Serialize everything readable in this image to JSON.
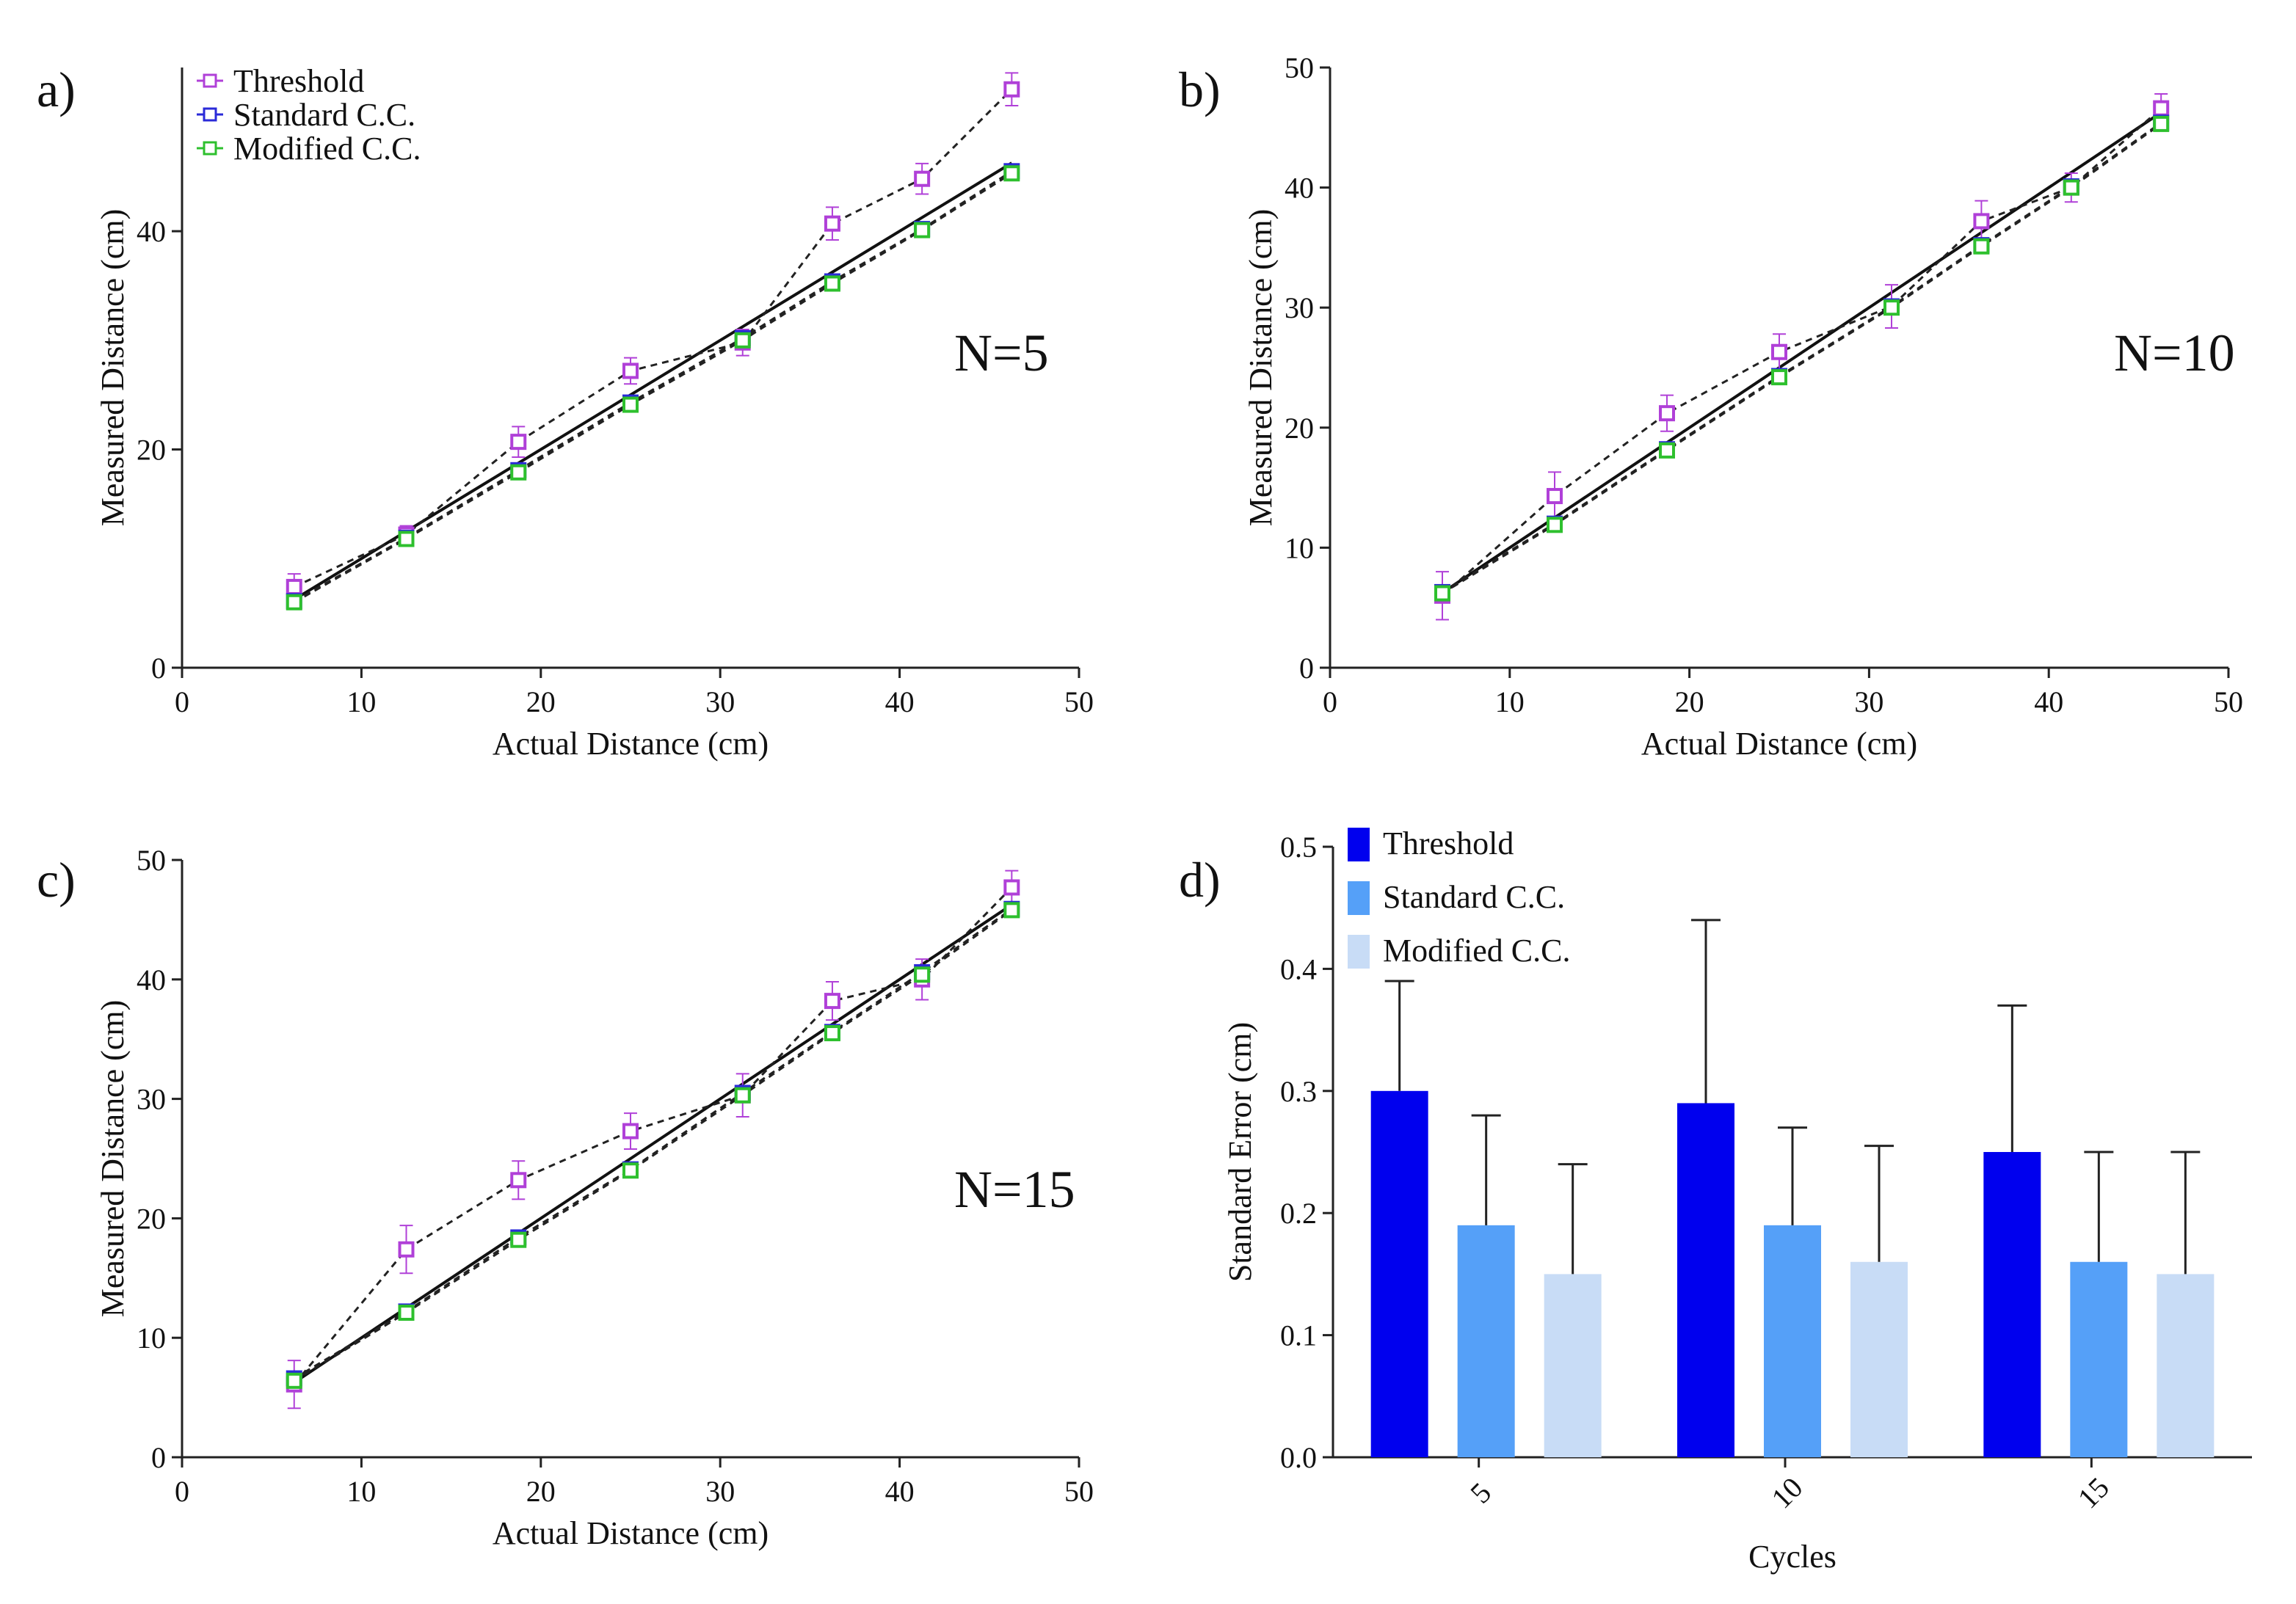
{
  "chart_data": [
    {
      "panel_label": "a)",
      "type": "line",
      "annotation": "N=5",
      "xlabel": "Actual Distance (cm)",
      "ylabel": "Measured Distance (cm)",
      "xlim": [
        0,
        50
      ],
      "ylim": [
        0,
        55
      ],
      "xticks": [
        "0",
        "10",
        "20",
        "30",
        "40",
        "50"
      ],
      "yticks": [
        "0",
        "20",
        "40"
      ],
      "legend_position": "top-left",
      "reference_line": {
        "name": "ideal",
        "x": [
          6.25,
          46.25
        ],
        "y": [
          6.25,
          46.25
        ]
      },
      "series": [
        {
          "name": "Threshold",
          "color": "#b040d8",
          "x": [
            6.25,
            12.5,
            18.75,
            25,
            31.25,
            36.25,
            41.25,
            46.25
          ],
          "y": [
            7.4,
            12.2,
            20.7,
            27.2,
            29.8,
            40.7,
            44.8,
            53
          ],
          "err": [
            1.2,
            0.8,
            1.4,
            1.2,
            1.2,
            1.5,
            1.4,
            1.5
          ]
        },
        {
          "name": "Standard  C.C.",
          "color": "#2a2ad8",
          "x": [
            6.25,
            12.5,
            18.75,
            25,
            31.25,
            36.25,
            41.25,
            46.25
          ],
          "y": [
            6.1,
            11.9,
            18.1,
            24.3,
            30.2,
            35.4,
            40.2,
            45.5
          ],
          "err": [
            0.5,
            0.5,
            0.5,
            0.5,
            0.5,
            0.5,
            0.5,
            0.5
          ]
        },
        {
          "name": "Modified C.C.",
          "color": "#2ec02e",
          "x": [
            6.25,
            12.5,
            18.75,
            25,
            31.25,
            36.25,
            41.25,
            46.25
          ],
          "y": [
            6.0,
            11.8,
            17.9,
            24.1,
            30.0,
            35.2,
            40.1,
            45.3
          ],
          "err": [
            0.4,
            0.4,
            0.4,
            0.4,
            0.4,
            0.4,
            0.4,
            0.4
          ]
        }
      ]
    },
    {
      "panel_label": "b)",
      "type": "line",
      "annotation": "N=10",
      "xlabel": "Actual Distance (cm)",
      "ylabel": "Measured Distance (cm)",
      "xlim": [
        0,
        50
      ],
      "ylim": [
        0,
        50
      ],
      "xticks": [
        "0",
        "10",
        "20",
        "30",
        "40",
        "50"
      ],
      "yticks": [
        "0",
        "10",
        "20",
        "30",
        "40",
        "50"
      ],
      "reference_line": {
        "name": "ideal",
        "x": [
          6.25,
          46.25
        ],
        "y": [
          6.25,
          46.25
        ]
      },
      "series": [
        {
          "name": "Threshold",
          "color": "#b040d8",
          "x": [
            6.25,
            12.5,
            18.75,
            25,
            31.25,
            36.25,
            41.25,
            46.25
          ],
          "y": [
            6.0,
            14.3,
            21.2,
            26.3,
            30.1,
            37.2,
            40.0,
            46.6
          ],
          "err": [
            2.0,
            2.0,
            1.5,
            1.5,
            1.8,
            1.7,
            1.2,
            1.2
          ]
        },
        {
          "name": "Standard  C.C.",
          "color": "#2a2ad8",
          "x": [
            6.25,
            12.5,
            18.75,
            25,
            31.25,
            36.25,
            41.25,
            46.25
          ],
          "y": [
            6.3,
            12.0,
            18.2,
            24.3,
            30.1,
            35.2,
            40.1,
            45.4
          ],
          "err": [
            0.5,
            0.5,
            0.5,
            0.5,
            0.5,
            0.5,
            0.5,
            0.5
          ]
        },
        {
          "name": "Modified C.C.",
          "color": "#2ec02e",
          "x": [
            6.25,
            12.5,
            18.75,
            25,
            31.25,
            36.25,
            41.25,
            46.25
          ],
          "y": [
            6.2,
            11.9,
            18.1,
            24.2,
            30.0,
            35.1,
            40.0,
            45.3
          ],
          "err": [
            0.4,
            0.4,
            0.4,
            0.4,
            0.4,
            0.4,
            0.4,
            0.4
          ]
        }
      ]
    },
    {
      "panel_label": "c)",
      "type": "line",
      "annotation": "N=15",
      "xlabel": "Actual Distance (cm)",
      "ylabel": "Measured Distance (cm)",
      "xlim": [
        0,
        50
      ],
      "ylim": [
        0,
        50
      ],
      "xticks": [
        "0",
        "10",
        "20",
        "30",
        "40",
        "50"
      ],
      "yticks": [
        "0",
        "10",
        "20",
        "30",
        "40",
        "50"
      ],
      "reference_line": {
        "name": "ideal",
        "x": [
          6.25,
          46.25
        ],
        "y": [
          6.25,
          46.25
        ]
      },
      "series": [
        {
          "name": "Threshold",
          "color": "#b040d8",
          "x": [
            6.25,
            12.5,
            18.75,
            25,
            31.25,
            36.25,
            41.25,
            46.25
          ],
          "y": [
            6.1,
            17.4,
            23.2,
            27.3,
            30.3,
            38.2,
            40.0,
            47.7
          ],
          "err": [
            2.0,
            2.0,
            1.6,
            1.5,
            1.8,
            1.6,
            1.7,
            1.4
          ]
        },
        {
          "name": "Standard  C.C.",
          "color": "#2a2ad8",
          "x": [
            6.25,
            12.5,
            18.75,
            25,
            31.25,
            36.25,
            41.25,
            46.25
          ],
          "y": [
            6.6,
            12.2,
            18.4,
            24.1,
            30.5,
            35.6,
            40.6,
            45.9
          ],
          "err": [
            0.5,
            0.5,
            0.5,
            0.5,
            0.5,
            0.5,
            0.5,
            0.5
          ]
        },
        {
          "name": "Modified C.C.",
          "color": "#2ec02e",
          "x": [
            6.25,
            12.5,
            18.75,
            25,
            31.25,
            36.25,
            41.25,
            46.25
          ],
          "y": [
            6.4,
            12.1,
            18.2,
            24.0,
            30.3,
            35.5,
            40.4,
            45.8
          ],
          "err": [
            0.4,
            0.4,
            0.4,
            0.4,
            0.4,
            0.4,
            0.4,
            0.4
          ]
        }
      ]
    },
    {
      "panel_label": "d)",
      "type": "bar",
      "xlabel": "Cycles",
      "ylabel": "Standard Error (cm)",
      "ylim": [
        0,
        0.5
      ],
      "yticks": [
        "0.0",
        "0.1",
        "0.2",
        "0.3",
        "0.4",
        "0.5"
      ],
      "categories": [
        "5",
        "10",
        "15"
      ],
      "legend_position": "top-left",
      "series": [
        {
          "name": "Threshold",
          "color": "#0000ee",
          "values": [
            0.3,
            0.29,
            0.25
          ],
          "err": [
            0.09,
            0.15,
            0.12
          ]
        },
        {
          "name": "Standard  C.C.",
          "color": "#55a0f8",
          "values": [
            0.19,
            0.19,
            0.16
          ],
          "err": [
            0.09,
            0.08,
            0.09
          ]
        },
        {
          "name": "Modified C.C.",
          "color": "#c8dcf6",
          "values": [
            0.15,
            0.16,
            0.15
          ],
          "err": [
            0.09,
            0.095,
            0.1
          ]
        }
      ]
    }
  ]
}
